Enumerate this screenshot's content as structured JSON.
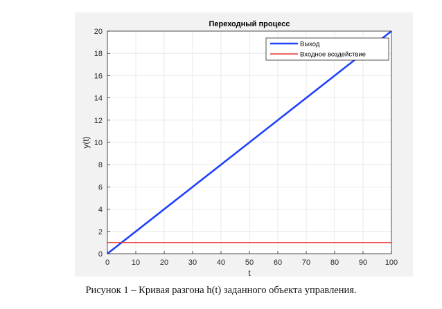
{
  "caption": "Рисунок 1 – Кривая разгона h(t) заданного объекта управления.",
  "chart_data": {
    "type": "line",
    "title": "Переходный процесс",
    "xlabel": "t",
    "ylabel": "y(t)",
    "xlim": [
      0,
      100
    ],
    "ylim": [
      0,
      20
    ],
    "xticks": [
      0,
      10,
      20,
      30,
      40,
      50,
      60,
      70,
      80,
      90,
      100
    ],
    "yticks": [
      0,
      2,
      4,
      6,
      8,
      10,
      12,
      14,
      16,
      18,
      20
    ],
    "grid": true,
    "legend_position": "top-right",
    "series": [
      {
        "name": "Выход",
        "color": "#1f3fff",
        "x": [
          0,
          100
        ],
        "y": [
          0,
          20
        ]
      },
      {
        "name": "Входное воздействие",
        "color": "#e8302a",
        "x": [
          0,
          100
        ],
        "y": [
          1,
          1
        ]
      }
    ]
  }
}
